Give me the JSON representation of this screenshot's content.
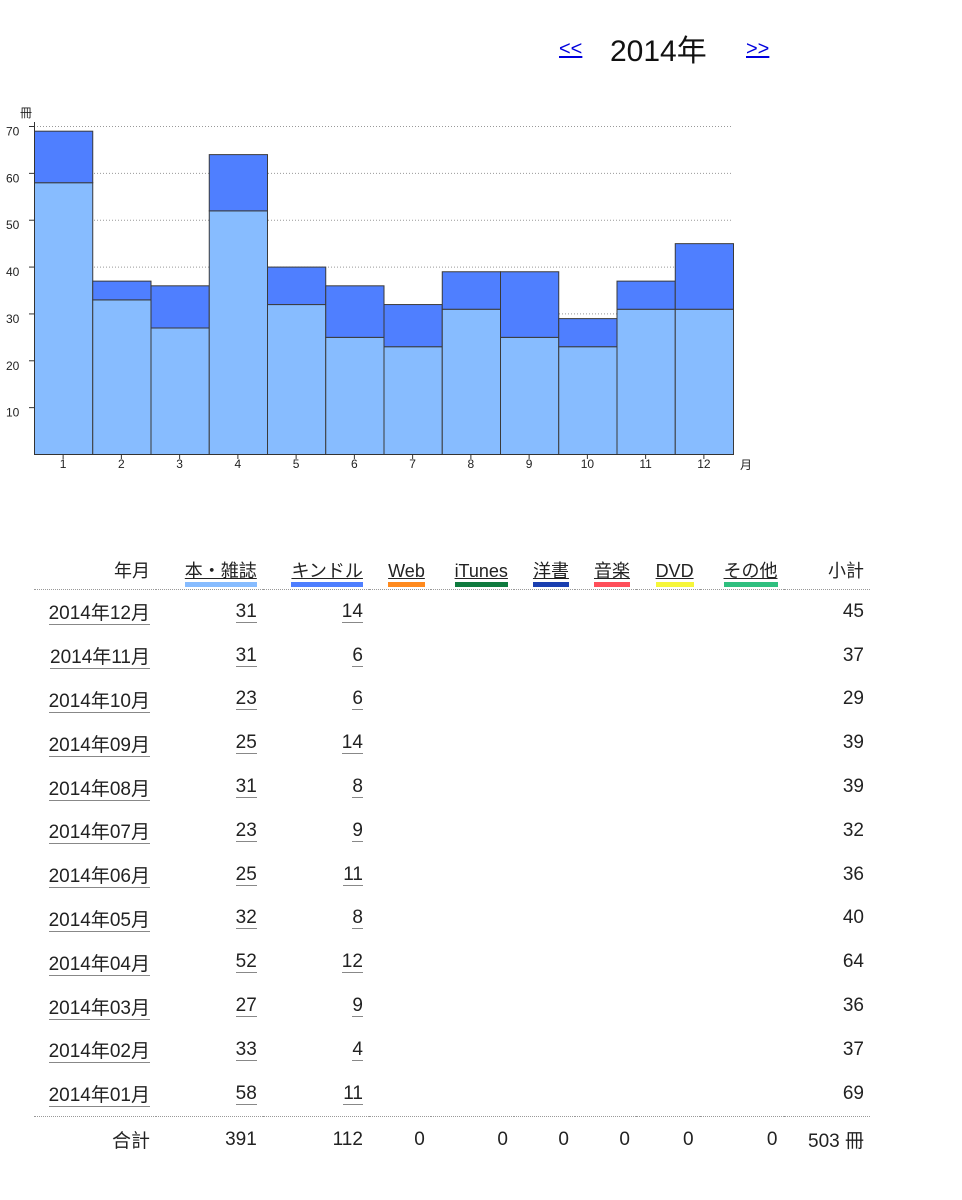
{
  "nav": {
    "prev": "<<",
    "next": ">>",
    "title": "2014年"
  },
  "chart_data": {
    "type": "bar",
    "stacked": true,
    "categories": [
      "1",
      "2",
      "3",
      "4",
      "5",
      "6",
      "7",
      "8",
      "9",
      "10",
      "11",
      "12"
    ],
    "series": [
      {
        "name": "本・雑誌",
        "color": "#87bcff",
        "values": [
          58,
          33,
          27,
          52,
          32,
          25,
          23,
          31,
          25,
          23,
          31,
          31
        ]
      },
      {
        "name": "キンドル",
        "color": "#4f7fff",
        "values": [
          11,
          4,
          9,
          12,
          8,
          11,
          9,
          8,
          14,
          6,
          6,
          14
        ]
      }
    ],
    "ylabel": "冊",
    "xlabel": "月",
    "yticks": [
      10,
      20,
      30,
      40,
      50,
      60,
      70
    ],
    "ylim": [
      0,
      70
    ],
    "grid": true
  },
  "table": {
    "headers": {
      "month": "年月",
      "books": "本・雑誌",
      "kindle": "キンドル",
      "web": "Web",
      "itunes": "iTunes",
      "yosho": "洋書",
      "music": "音楽",
      "dvd": "DVD",
      "other": "その他",
      "subtotal": "小計"
    },
    "header_colors": {
      "books": "#87bcff",
      "kindle": "#4f7fff",
      "web": "#ff8a1e",
      "itunes": "#0e7a3e",
      "yosho": "#1a3fb0",
      "music": "#ff4f5a",
      "dvd": "#f6f63a",
      "other": "#2fbf7f"
    },
    "rows": [
      {
        "month": "2014年12月",
        "books": "31",
        "kindle": "14",
        "subtotal": "45"
      },
      {
        "month": "2014年11月",
        "books": "31",
        "kindle": "6",
        "subtotal": "37"
      },
      {
        "month": "2014年10月",
        "books": "23",
        "kindle": "6",
        "subtotal": "29"
      },
      {
        "month": "2014年09月",
        "books": "25",
        "kindle": "14",
        "subtotal": "39"
      },
      {
        "month": "2014年08月",
        "books": "31",
        "kindle": "8",
        "subtotal": "39"
      },
      {
        "month": "2014年07月",
        "books": "23",
        "kindle": "9",
        "subtotal": "32"
      },
      {
        "month": "2014年06月",
        "books": "25",
        "kindle": "11",
        "subtotal": "36"
      },
      {
        "month": "2014年05月",
        "books": "32",
        "kindle": "8",
        "subtotal": "40"
      },
      {
        "month": "2014年04月",
        "books": "52",
        "kindle": "12",
        "subtotal": "64"
      },
      {
        "month": "2014年03月",
        "books": "27",
        "kindle": "9",
        "subtotal": "36"
      },
      {
        "month": "2014年02月",
        "books": "33",
        "kindle": "4",
        "subtotal": "37"
      },
      {
        "month": "2014年01月",
        "books": "58",
        "kindle": "11",
        "subtotal": "69"
      }
    ],
    "total": {
      "label": "合計",
      "books": "391",
      "kindle": "112",
      "web": "0",
      "itunes": "0",
      "yosho": "0",
      "music": "0",
      "dvd": "0",
      "other": "0",
      "subtotal": "503 冊"
    }
  }
}
